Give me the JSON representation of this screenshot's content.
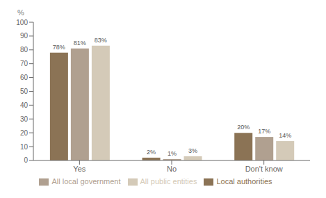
{
  "chart_data": {
    "type": "bar",
    "categories": [
      "Yes",
      "No",
      "Don't know"
    ],
    "series": [
      {
        "name": "Local authorities",
        "color": "#8b7355",
        "values": [
          78,
          2,
          20
        ],
        "value_labels": [
          "78%",
          "2%",
          "20%"
        ]
      },
      {
        "name": "All local government",
        "color": "#b0a090",
        "values": [
          81,
          1,
          17
        ],
        "value_labels": [
          "81%",
          "1%",
          "17%"
        ]
      },
      {
        "name": "All public entities",
        "color": "#d4cab8",
        "values": [
          83,
          3,
          14
        ],
        "value_labels": [
          "83%",
          "3%",
          "14%"
        ]
      }
    ],
    "y_label": "%",
    "ylim": [
      0,
      100
    ],
    "yticks": [
      0,
      10,
      20,
      30,
      40,
      50,
      60,
      70,
      80,
      90,
      100
    ],
    "grid": false,
    "legend": "bottom"
  }
}
